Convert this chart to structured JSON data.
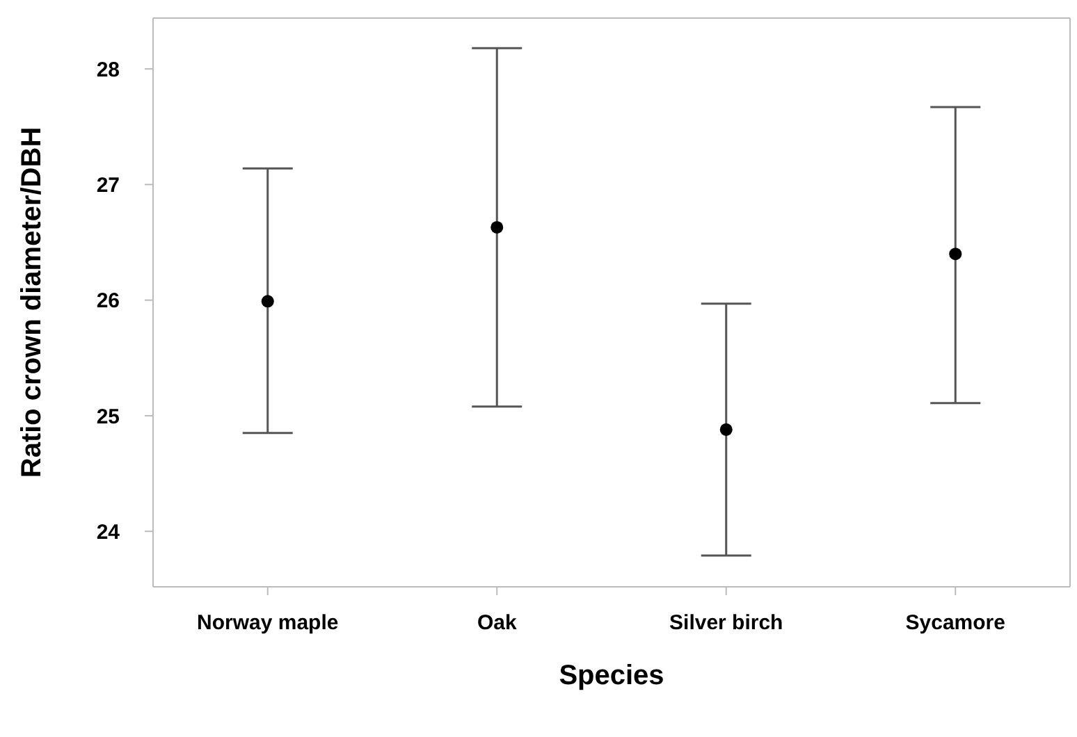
{
  "chart_data": {
    "type": "scatter",
    "xlabel": "Species",
    "ylabel": "Ratio crown diameter/DBH",
    "categories": [
      "Norway maple",
      "Oak",
      "Silver birch",
      "Sycamore"
    ],
    "values": [
      25.99,
      26.63,
      24.88,
      26.4
    ],
    "errors": [
      [
        24.85,
        27.14
      ],
      [
        25.08,
        28.18
      ],
      [
        23.79,
        25.97
      ],
      [
        25.11,
        27.67
      ]
    ],
    "color": "#000000",
    "marker": "circle",
    "ylim": [
      23.52,
      28.44
    ],
    "yticks": [
      24,
      25,
      26,
      27,
      28
    ],
    "grid": false,
    "legend": false
  }
}
